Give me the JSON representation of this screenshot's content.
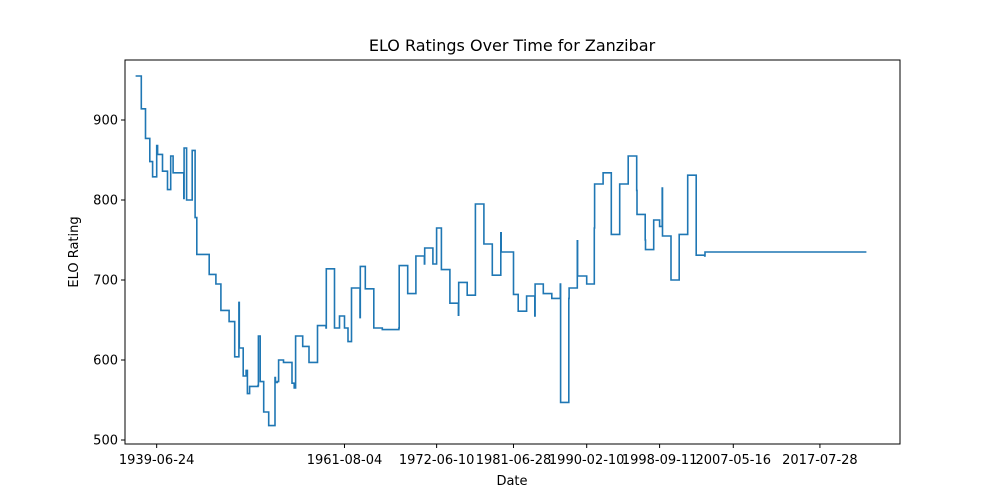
{
  "chart_data": {
    "type": "line",
    "title": "ELO Ratings Over Time for Zanzibar",
    "xlabel": "Date",
    "ylabel": "ELO Rating",
    "x_tick_labels": [
      "1939-06-24",
      "1961-08-04",
      "1972-06-10",
      "1981-06-28",
      "1990-02-10",
      "1998-09-11",
      "2007-05-16",
      "2017-07-28"
    ],
    "y_ticks": [
      500,
      600,
      700,
      800,
      900
    ],
    "xlim": [
      "1935-10-01",
      "2027-01-01"
    ],
    "ylim": [
      495,
      975
    ],
    "grid": false,
    "legend": "none",
    "line_color": "#1f77b4",
    "series": [
      {
        "x": [
          "1937-01-01",
          "1937-06-01",
          "1937-09-01",
          "1938-01-01",
          "1938-03-01",
          "1938-06-01",
          "1938-09-01",
          "1938-09-15",
          "1939-01-01",
          "1939-06-24",
          "1939-08-01",
          "1940-03-01",
          "1940-10-01",
          "1941-02-01",
          "1941-02-15",
          "1941-06-01",
          "1942-06-01",
          "1942-09-01",
          "1942-09-15",
          "1943-01-01",
          "1943-06-01",
          "1943-09-01",
          "1943-09-15",
          "1944-01-01",
          "1944-03-01",
          "1944-03-15",
          "1945-09-01",
          "1946-06-01",
          "1946-06-15",
          "1947-01-01",
          "1947-01-15",
          "1948-01-01",
          "1948-09-01",
          "1949-01-01",
          "1949-03-01",
          "1949-03-15",
          "1949-06-01",
          "1949-09-01",
          "1949-09-15",
          "1950-01-01",
          "1950-01-15",
          "1950-03-01",
          "1950-06-01",
          "1951-06-01",
          "1951-06-15",
          "1951-09-01",
          "1951-11-01",
          "1952-02-01",
          "1952-06-01",
          "1952-09-01",
          "1953-06-01",
          "1953-06-15",
          "1953-09-01",
          "1953-11-01",
          "1954-06-01",
          "1955-06-01",
          "1955-06-15",
          "1955-09-01",
          "1955-11-01",
          "1956-09-01",
          "1956-09-15",
          "1957-06-01",
          "1957-06-15",
          "1958-06-01",
          "1958-06-15",
          "1959-06-01",
          "1959-06-15",
          "1960-06-01",
          "1960-06-15",
          "1961-01-01",
          "1961-08-04",
          "1962-01-01",
          "1962-06-01",
          "1962-06-15",
          "1963-06-01",
          "1963-06-15",
          "1964-01-01",
          "1964-01-15",
          "1965-01-01",
          "1965-01-15",
          "1966-01-01",
          "1966-01-15",
          "1967-01-01",
          "1967-01-15",
          "1968-01-01",
          "1968-01-15",
          "1969-01-01",
          "1969-01-15",
          "1970-01-01",
          "1970-01-15",
          "1971-01-01",
          "1971-01-15",
          "1972-01-01",
          "1972-06-10",
          "1973-01-01",
          "1974-01-01",
          "1974-01-15",
          "1975-01-01",
          "1975-01-15",
          "1976-01-01",
          "1976-01-15",
          "1977-01-01",
          "1977-01-15",
          "1978-01-01",
          "1978-01-15",
          "1979-01-01",
          "1979-01-15",
          "1980-01-01",
          "1980-01-15",
          "1981-01-01",
          "1981-06-28",
          "1982-01-01",
          "1982-01-15",
          "1983-01-01",
          "1983-01-15",
          "1984-01-01",
          "1984-01-15",
          "1985-01-01",
          "1985-01-15",
          "1986-01-01",
          "1986-01-15",
          "1987-01-01",
          "1987-01-15",
          "1988-01-01",
          "1988-01-15",
          "1989-01-01",
          "1989-01-15",
          "1990-02-10",
          "1991-01-01",
          "1991-01-15",
          "1992-01-01",
          "1992-01-15",
          "1993-01-01",
          "1993-01-15",
          "1994-01-01",
          "1994-01-15",
          "1995-01-01",
          "1995-01-15",
          "1996-01-01",
          "1996-01-15",
          "1997-01-01",
          "1997-01-15",
          "1998-01-01",
          "1998-09-11",
          "1999-01-01",
          "1999-01-15",
          "2000-01-01",
          "2000-01-15",
          "2001-01-01",
          "2001-01-15",
          "2002-01-01",
          "2002-01-15",
          "2003-01-01",
          "2003-01-15",
          "2004-01-01",
          "2004-01-15",
          "2005-01-01",
          "2005-01-15",
          "2006-01-01",
          "2006-01-15",
          "2007-05-16",
          "2008-01-01",
          "2008-01-15",
          "2009-01-01",
          "2009-01-15",
          "2010-01-01",
          "2010-01-15",
          "2011-01-01",
          "2011-01-15",
          "2012-01-01",
          "2012-01-15",
          "2013-01-01",
          "2013-01-15",
          "2014-01-01",
          "2014-01-15",
          "2015-01-01",
          "2015-01-15",
          "2016-01-01",
          "2016-01-15",
          "2017-07-28",
          "2018-01-01",
          "2018-01-15",
          "2019-01-01",
          "2019-01-15",
          "2020-01-01",
          "2020-01-15",
          "2021-01-01",
          "2021-01-15",
          "2022-01-01",
          "2022-01-15",
          "2023-01-01",
          "2023-01-15"
        ],
        "y": [
          955,
          955,
          914,
          914,
          877,
          877,
          848,
          848,
          829,
          868,
          857,
          836,
          813,
          813,
          855,
          834,
          834,
          802,
          865,
          800,
          800,
          862,
          862,
          778,
          778,
          732,
          707,
          707,
          695,
          695,
          662,
          648,
          604,
          604,
          672,
          615,
          615,
          580,
          580,
          587,
          587,
          558,
          567,
          568,
          630,
          573,
          573,
          535,
          535,
          518,
          578,
          572,
          573,
          600,
          597,
          571,
          571,
          565,
          630,
          617,
          617,
          597,
          597,
          643,
          643,
          640,
          714,
          640,
          640,
          655,
          640,
          623,
          690,
          690,
          653,
          717,
          717,
          689,
          689,
          640,
          640,
          638,
          638,
          638,
          640,
          718,
          718,
          683,
          730,
          730,
          720,
          740,
          720,
          765,
          713,
          671,
          671,
          656,
          697,
          697,
          681,
          795,
          795,
          745,
          745,
          706,
          706,
          759,
          735,
          735,
          682,
          682,
          661,
          661,
          680,
          655,
          695,
          683,
          683,
          677,
          677,
          695,
          547,
          677,
          690,
          749,
          705,
          695,
          765,
          820,
          820,
          834,
          757,
          757,
          820,
          820,
          855,
          855,
          812,
          782,
          750,
          738,
          775,
          767,
          815,
          755,
          755,
          700,
          757,
          757,
          831,
          831,
          731,
          731,
          730,
          735,
          735,
          735,
          735,
          735,
          735,
          735,
          735,
          735,
          735,
          735,
          735,
          735,
          735,
          735,
          735,
          735,
          735,
          735,
          735,
          735,
          735,
          735,
          735,
          735,
          735,
          735,
          735,
          735,
          735,
          735,
          735,
          735,
          735,
          735,
          735,
          735
        ]
      }
    ]
  }
}
